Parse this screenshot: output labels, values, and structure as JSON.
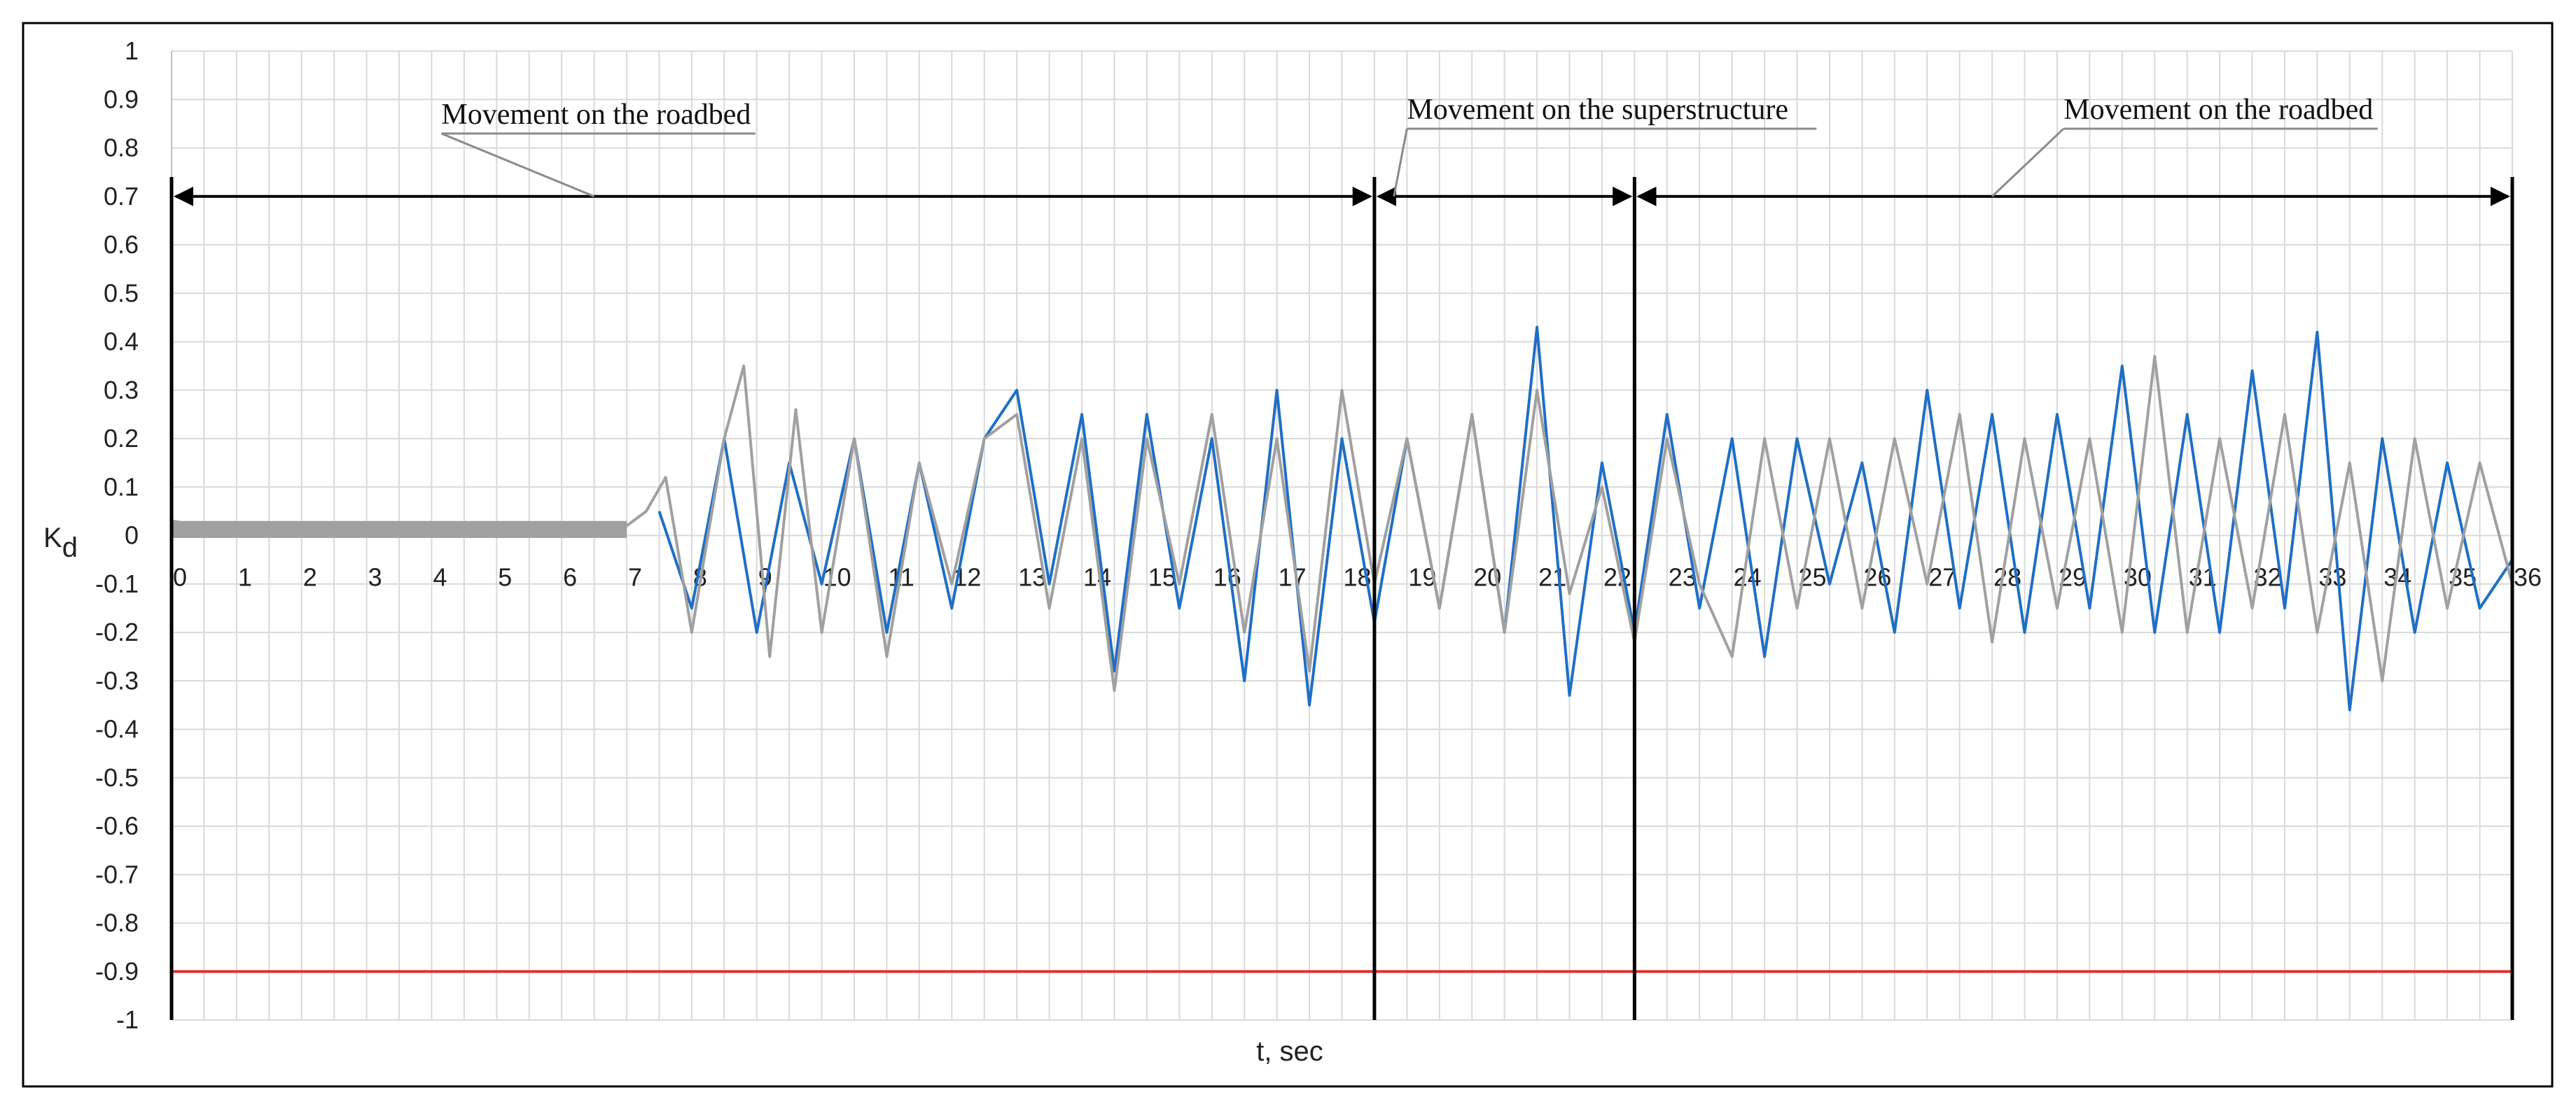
{
  "chart_data": {
    "type": "line",
    "title": "",
    "xlabel": "t, sec",
    "ylabel": "K",
    "ylabel_subscript": "d",
    "xlim": [
      0,
      36
    ],
    "ylim": [
      -1,
      1
    ],
    "x_ticks": [
      "0",
      "1",
      "2",
      "3",
      "4",
      "5",
      "6",
      "7",
      "8",
      "9",
      "10",
      "11",
      "12",
      "13",
      "14",
      "15",
      "16",
      "17",
      "18",
      "19",
      "20",
      "21",
      "22",
      "23",
      "24",
      "25",
      "26",
      "27",
      "28",
      "29",
      "30",
      "31",
      "32",
      "33",
      "34",
      "35",
      "36"
    ],
    "y_ticks": [
      "1",
      "0.9",
      "0.8",
      "0.7",
      "0.6",
      "0.5",
      "0.4",
      "0.3",
      "0.2",
      "0.1",
      "0",
      "-0.1",
      "-0.2",
      "-0.3",
      "-0.4",
      "-0.5",
      "-0.6",
      "-0.7",
      "-0.8",
      "-0.9",
      "-1"
    ],
    "grid": true,
    "colors": {
      "series_blue": "#1f6fc5",
      "series_gray": "#a0a0a0",
      "threshold": "#e03030",
      "frame": "#000000",
      "grid": "#d9d9d9"
    },
    "threshold": {
      "y": -0.9
    },
    "boundaries": [
      0,
      18.5,
      22.5,
      36
    ],
    "segments": [
      {
        "label": "Movement on the roadbed",
        "from": 0,
        "to": 18.5
      },
      {
        "label": "Movement on the superstructure",
        "from": 18.5,
        "to": 22.5
      },
      {
        "label": "Movement on the roadbed",
        "from": 22.5,
        "to": 36
      }
    ],
    "series": [
      {
        "color_key": "series_blue",
        "x": [
          7.5,
          8,
          8.5,
          9,
          9.5,
          10,
          10.5,
          11,
          11.5,
          12,
          12.5,
          13,
          13.5,
          14,
          14.5,
          15,
          15.5,
          16,
          16.5,
          17,
          17.5,
          18,
          18.5,
          19,
          19.5,
          20,
          20.5,
          21,
          21.5,
          22,
          22.5,
          23,
          23.5,
          24,
          24.5,
          25,
          25.5,
          26,
          26.5,
          27,
          27.5,
          28,
          28.5,
          29,
          29.5,
          30,
          30.5,
          31,
          31.5,
          32,
          32.5,
          33,
          33.5,
          34,
          34.5,
          35,
          35.5,
          36
        ],
        "y": [
          0.05,
          -0.15,
          0.2,
          -0.2,
          0.15,
          -0.1,
          0.2,
          -0.2,
          0.15,
          -0.15,
          0.2,
          0.3,
          -0.1,
          0.25,
          -0.28,
          0.25,
          -0.15,
          0.2,
          -0.3,
          0.3,
          -0.35,
          0.2,
          -0.18,
          0.2,
          -0.15,
          0.25,
          -0.2,
          0.43,
          -0.33,
          0.15,
          -0.2,
          0.25,
          -0.15,
          0.2,
          -0.25,
          0.2,
          -0.1,
          0.15,
          -0.2,
          0.3,
          -0.15,
          0.25,
          -0.2,
          0.25,
          -0.15,
          0.35,
          -0.2,
          0.25,
          -0.2,
          0.34,
          -0.15,
          0.42,
          -0.36,
          0.2,
          -0.2,
          0.15,
          -0.15,
          -0.05
        ]
      },
      {
        "color_key": "series_gray",
        "x": [
          0,
          0.5,
          1,
          1.5,
          2,
          2.5,
          3,
          3.5,
          4,
          4.5,
          5,
          5.5,
          6,
          6.5,
          7,
          7.3,
          7.6,
          8,
          8.5,
          8.8,
          9.2,
          9.6,
          10,
          10.5,
          11,
          11.5,
          12,
          12.5,
          13,
          13.5,
          14,
          14.5,
          15,
          15.5,
          16,
          16.5,
          17,
          17.5,
          18,
          18.5,
          19,
          19.5,
          20,
          20.5,
          21,
          21.5,
          22,
          22.5,
          23,
          23.5,
          24,
          24.5,
          25,
          25.5,
          26,
          26.5,
          27,
          27.5,
          28,
          28.5,
          29,
          29.5,
          30,
          30.5,
          31,
          31.5,
          32,
          32.5,
          33,
          33.5,
          34,
          34.5,
          35,
          35.5,
          36
        ],
        "y": [
          0.03,
          0.02,
          0.02,
          0.02,
          0.02,
          0.02,
          0.02,
          0.02,
          0.02,
          0.02,
          0.02,
          0.02,
          0.02,
          0.02,
          0.02,
          0.05,
          0.12,
          -0.2,
          0.2,
          0.35,
          -0.25,
          0.26,
          -0.2,
          0.2,
          -0.25,
          0.15,
          -0.1,
          0.2,
          0.25,
          -0.15,
          0.2,
          -0.32,
          0.2,
          -0.1,
          0.25,
          -0.2,
          0.2,
          -0.28,
          0.3,
          -0.1,
          0.2,
          -0.15,
          0.25,
          -0.2,
          0.3,
          -0.12,
          0.1,
          -0.22,
          0.2,
          -0.1,
          -0.25,
          0.2,
          -0.15,
          0.2,
          -0.15,
          0.2,
          -0.1,
          0.25,
          -0.22,
          0.2,
          -0.15,
          0.2,
          -0.2,
          0.37,
          -0.2,
          0.2,
          -0.15,
          0.25,
          -0.2,
          0.15,
          -0.3,
          0.2,
          -0.15,
          0.15,
          -0.1
        ]
      }
    ]
  }
}
